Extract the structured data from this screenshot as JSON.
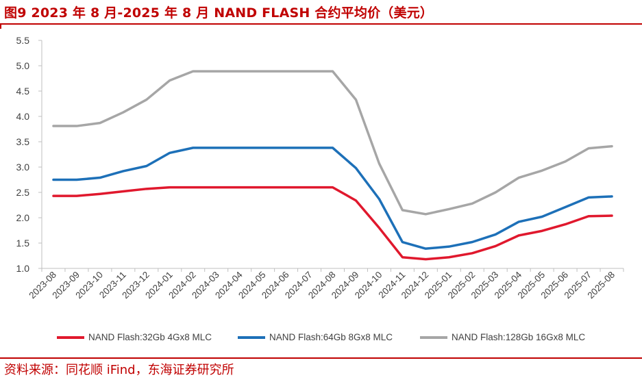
{
  "header": {
    "title": "图9 2023 年 8 月-2025 年 8 月 NAND FLASH 合约平均价（美元）"
  },
  "footer": {
    "source": "资料来源：同花顺 iFind，东海证券研究所"
  },
  "chart_data": {
    "type": "line",
    "title": "图9 2023 年 8 月-2025 年 8 月 NAND FLASH 合约平均价（美元）",
    "xlabel": "",
    "ylabel": "",
    "ylim": [
      1.0,
      5.5
    ],
    "yticks": [
      "1.0",
      "1.5",
      "2.0",
      "2.5",
      "3.0",
      "3.5",
      "4.0",
      "4.5",
      "5.0",
      "5.5"
    ],
    "grid": false,
    "legend_position": "bottom",
    "categories": [
      "2023-08",
      "2023-09",
      "2023-10",
      "2023-11",
      "2023-12",
      "2024-01",
      "2024-02",
      "2024-03",
      "2024-04",
      "2024-05",
      "2024-06",
      "2024-07",
      "2024-08",
      "2024-09",
      "2024-10",
      "2024-11",
      "2024-12",
      "2025-01",
      "2025-02",
      "2025-03",
      "2025-04",
      "2025-05",
      "2025-06",
      "2025-07",
      "2025-08"
    ],
    "series": [
      {
        "name": "NAND Flash:32Gb 4Gx8 MLC",
        "color": "#e0182d",
        "values": [
          2.43,
          2.43,
          2.47,
          2.52,
          2.57,
          2.6,
          2.6,
          2.6,
          2.6,
          2.6,
          2.6,
          2.6,
          2.6,
          2.34,
          1.8,
          1.22,
          1.18,
          1.22,
          1.3,
          1.44,
          1.65,
          1.74,
          1.87,
          2.03,
          2.04
        ]
      },
      {
        "name": "NAND Flash:64Gb 8Gx8 MLC",
        "color": "#1d70b8",
        "values": [
          2.75,
          2.75,
          2.79,
          2.92,
          3.02,
          3.28,
          3.38,
          3.38,
          3.38,
          3.38,
          3.38,
          3.38,
          3.38,
          2.98,
          2.37,
          1.52,
          1.39,
          1.43,
          1.52,
          1.67,
          1.92,
          2.02,
          2.21,
          2.4,
          2.42
        ]
      },
      {
        "name": "NAND Flash:128Gb 16Gx8 MLC",
        "color": "#a6a6a6",
        "values": [
          3.81,
          3.81,
          3.87,
          4.08,
          4.33,
          4.71,
          4.89,
          4.89,
          4.89,
          4.89,
          4.89,
          4.89,
          4.89,
          4.33,
          3.07,
          2.15,
          2.07,
          2.17,
          2.28,
          2.5,
          2.79,
          2.93,
          3.11,
          3.37,
          3.41
        ]
      }
    ]
  }
}
